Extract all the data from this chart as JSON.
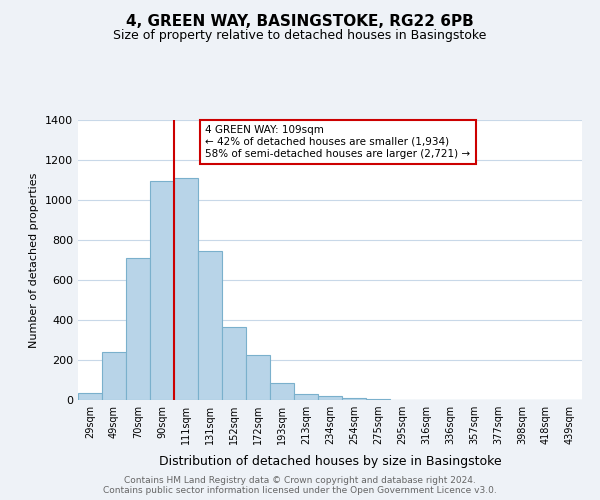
{
  "title1": "4, GREEN WAY, BASINGSTOKE, RG22 6PB",
  "title2": "Size of property relative to detached houses in Basingstoke",
  "xlabel": "Distribution of detached houses by size in Basingstoke",
  "ylabel": "Number of detached properties",
  "bin_labels": [
    "29sqm",
    "49sqm",
    "70sqm",
    "90sqm",
    "111sqm",
    "131sqm",
    "152sqm",
    "172sqm",
    "193sqm",
    "213sqm",
    "234sqm",
    "254sqm",
    "275sqm",
    "295sqm",
    "316sqm",
    "336sqm",
    "357sqm",
    "377sqm",
    "398sqm",
    "418sqm",
    "439sqm"
  ],
  "bar_heights": [
    35,
    240,
    710,
    1095,
    1110,
    745,
    365,
    225,
    85,
    32,
    20,
    12,
    5,
    0,
    0,
    0,
    0,
    0,
    0,
    0,
    0
  ],
  "bar_color": "#b8d4e8",
  "bar_edge_color": "#7ab0cc",
  "vline_index": 4,
  "vline_color": "#cc0000",
  "annotation_line1": "4 GREEN WAY: 109sqm",
  "annotation_line2": "← 42% of detached houses are smaller (1,934)",
  "annotation_line3": "58% of semi-detached houses are larger (2,721) →",
  "annotation_box_color": "#ffffff",
  "annotation_box_edge": "#cc0000",
  "footer_text": "Contains HM Land Registry data © Crown copyright and database right 2024.\nContains public sector information licensed under the Open Government Licence v3.0.",
  "ylim": [
    0,
    1400
  ],
  "yticks": [
    0,
    200,
    400,
    600,
    800,
    1000,
    1200,
    1400
  ],
  "bg_color": "#eef2f7",
  "plot_bg_color": "#ffffff",
  "grid_color": "#c8d8e8"
}
